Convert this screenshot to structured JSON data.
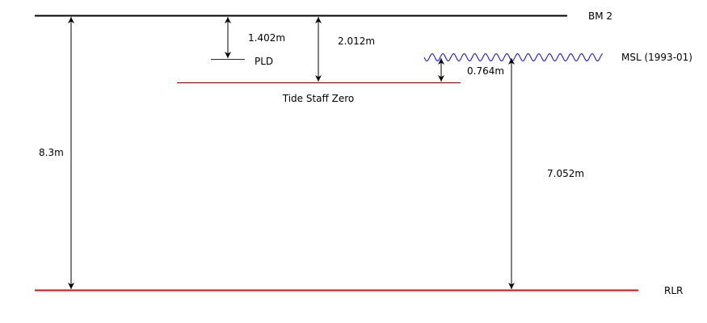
{
  "levels": {
    "bm2": {
      "label": "BM 2"
    },
    "pld": {
      "label": "PLD"
    },
    "tide_staff_zero": {
      "label": "Tide Staff Zero"
    },
    "msl": {
      "label": "MSL (1993-01)"
    },
    "rlr": {
      "label": "RLR"
    }
  },
  "measurements": {
    "bm2_to_pld": "1.402m",
    "bm2_to_tsz": "2.012m",
    "tsz_to_msl": "0.764m",
    "msl_to_rlr": "7.052m",
    "bm2_to_rlr": "8.3m"
  },
  "colors": {
    "bm2_line": "#000000",
    "pld_line": "#8b0000",
    "tsz_line": "#8b0000",
    "msl_wave": "#0000ff",
    "rlr_line": "#ff0000",
    "arrow": "#000000"
  }
}
